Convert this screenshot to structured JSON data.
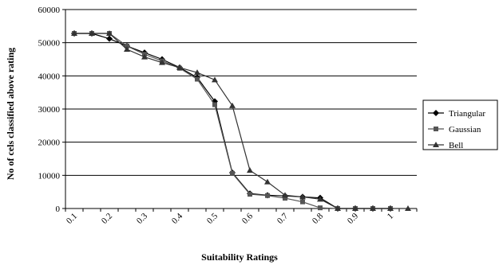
{
  "chart_data": {
    "type": "line",
    "xlabel": "Suitability Ratings",
    "ylabel": "No of cels classified above rating",
    "ylim": [
      0,
      60000
    ],
    "y_ticks": [
      "0",
      "10000",
      "20000",
      "30000",
      "40000",
      "50000",
      "60000"
    ],
    "x_ticks": [
      "0.1",
      "0.2",
      "0.3",
      "0.4",
      "0.5",
      "0.6",
      "0.7",
      "0.8",
      "0.9",
      "1"
    ],
    "x": [
      0.1,
      0.15,
      0.2,
      0.25,
      0.3,
      0.35,
      0.4,
      0.45,
      0.5,
      0.55,
      0.6,
      0.65,
      0.7,
      0.75,
      0.8,
      0.85,
      0.9,
      0.95,
      1.0,
      1.05
    ],
    "grid": true,
    "legend_position": "right",
    "series": [
      {
        "name": "Triangular",
        "marker": "diamond",
        "values": [
          52800,
          52800,
          51200,
          49000,
          47000,
          45000,
          42500,
          39500,
          32300,
          10800,
          4500,
          4000,
          3800,
          3500,
          3200,
          0,
          0,
          0,
          0,
          null
        ]
      },
      {
        "name": "Gaussian",
        "marker": "square",
        "values": [
          52800,
          52800,
          52800,
          49000,
          46500,
          44500,
          42300,
          39000,
          31300,
          10600,
          4300,
          3900,
          3100,
          2000,
          200,
          0,
          0,
          0,
          0,
          null
        ]
      },
      {
        "name": "Bell",
        "marker": "triangle",
        "values": [
          52800,
          52800,
          52800,
          48000,
          45700,
          44000,
          42500,
          41000,
          38800,
          31000,
          11500,
          8000,
          4000,
          3500,
          2800,
          0,
          0,
          0,
          0,
          0
        ]
      }
    ]
  }
}
